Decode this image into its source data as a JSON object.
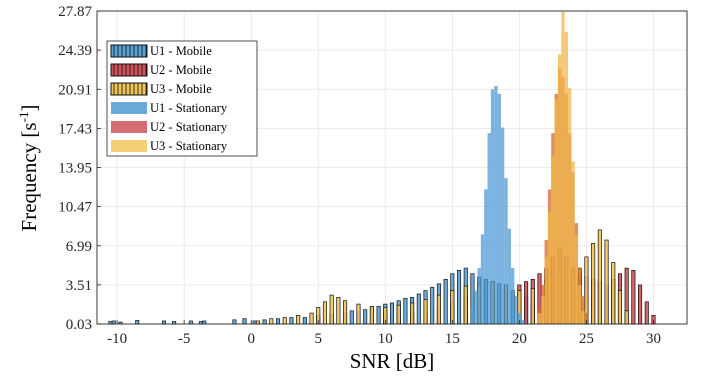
{
  "chart_data": {
    "type": "histogram",
    "xlabel": "SNR [dB]",
    "ylabel": "Frequency [s",
    "ylabel_sup": "-1",
    "ylabel_end": "]",
    "xlim": [
      -11.5,
      32.5
    ],
    "ylim": [
      0.03,
      27.87
    ],
    "xticks": [
      -10,
      -5,
      0,
      5,
      10,
      15,
      20,
      25,
      30
    ],
    "xtick_labels": [
      "-10",
      "-5",
      "0",
      "5",
      "10",
      "15",
      "20",
      "25",
      "30"
    ],
    "yticks": [
      0.03,
      3.51,
      6.99,
      10.47,
      13.95,
      17.43,
      20.91,
      24.39,
      27.87
    ],
    "ytick_labels": [
      "0.03",
      "3.51",
      "6.99",
      "10.47",
      "13.95",
      "17.43",
      "20.91",
      "24.39",
      "27.87"
    ],
    "grid": true,
    "legend_position": "top-left",
    "bin_width": 0.25,
    "series": [
      {
        "name": "U1 - Mobile",
        "style": "outlined",
        "color": "#0072BD",
        "x": [
          -10.5,
          -10.25,
          -9.75,
          -8.5,
          -6.5,
          -5.75,
          -4.5,
          -3.75,
          -3.5,
          -1.25,
          -0.5,
          0.25,
          1.0,
          2.0,
          3.0,
          4.0,
          5.0,
          6.0,
          7.0,
          7.5,
          8.0,
          8.5,
          9.0,
          9.5,
          10.0,
          10.5,
          11.0,
          11.5,
          12.0,
          12.5,
          13.0,
          13.5,
          14.0,
          14.5,
          15.0,
          15.5,
          16.0,
          16.5,
          17.0,
          17.5,
          18.0,
          18.5,
          19.0,
          19.5,
          20.0,
          20.5,
          21.0
        ],
        "values": [
          0.25,
          0.3,
          0.2,
          0.35,
          0.3,
          0.25,
          0.3,
          0.25,
          0.3,
          0.4,
          0.5,
          0.3,
          0.4,
          0.5,
          0.6,
          0.6,
          0.8,
          0.9,
          1.0,
          1.2,
          1.1,
          1.3,
          1.5,
          1.6,
          1.8,
          1.9,
          2.1,
          2.3,
          2.4,
          2.7,
          3.0,
          3.3,
          3.6,
          4.0,
          4.5,
          4.8,
          5.0,
          4.5,
          4.2,
          4.0,
          3.8,
          3.6,
          3.3,
          3.0,
          2.8,
          2.4,
          1.8
        ]
      },
      {
        "name": "U2 - Mobile",
        "style": "outlined",
        "color": "#D95319",
        "x": [
          10.0,
          11.0,
          12.0,
          13.0,
          14.0,
          15.0,
          16.0,
          17.0,
          18.0,
          19.0,
          20.0,
          20.5,
          21.0,
          21.5,
          22.0,
          22.5,
          23.0,
          23.5,
          24.0,
          24.5,
          25.0,
          25.5,
          26.0,
          26.5,
          27.0,
          27.5,
          28.0,
          28.5,
          29.0,
          29.5,
          30.0
        ],
        "values": [
          0.5,
          0.8,
          1.0,
          1.2,
          1.5,
          1.9,
          2.3,
          2.7,
          3.0,
          3.3,
          3.5,
          3.8,
          4.0,
          4.5,
          5.0,
          6.0,
          6.8,
          6.0,
          5.0,
          4.5,
          4.2,
          4.0,
          3.8,
          3.5,
          4.0,
          4.5,
          5.0,
          4.8,
          3.5,
          2.0,
          0.8
        ]
      },
      {
        "name": "U3 - Mobile",
        "style": "outlined",
        "color": "#EDB120",
        "x": [
          0.5,
          1.5,
          2.5,
          3.5,
          4.5,
          5.0,
          5.5,
          6.0,
          6.5,
          7.0,
          8.0,
          9.0,
          10.0,
          11.0,
          12.0,
          13.0,
          14.0,
          15.0,
          16.0,
          17.0,
          18.0,
          19.0,
          20.0,
          21.0,
          22.0,
          23.0,
          24.0,
          24.5,
          25.0,
          25.5,
          26.0,
          26.5,
          27.0,
          27.5,
          28.0
        ],
        "values": [
          0.3,
          0.5,
          0.6,
          0.8,
          1.0,
          1.5,
          2.0,
          2.6,
          2.4,
          2.1,
          1.8,
          1.6,
          1.5,
          1.7,
          1.9,
          2.2,
          2.6,
          3.0,
          3.4,
          3.6,
          3.8,
          3.5,
          3.0,
          3.2,
          4.0,
          4.8,
          4.5,
          5.0,
          6.0,
          7.2,
          8.4,
          7.5,
          5.5,
          3.0,
          1.2
        ]
      },
      {
        "name": "U1 - Stationary",
        "style": "filled",
        "color": "#0072BD",
        "x": [
          16.5,
          16.75,
          17.0,
          17.25,
          17.5,
          17.75,
          18.0,
          18.25,
          18.5,
          18.75,
          19.0,
          19.25,
          19.5,
          19.75,
          20.0,
          20.25
        ],
        "values": [
          1.5,
          3.0,
          5.0,
          8.0,
          12.0,
          17.0,
          20.9,
          21.2,
          20.5,
          17.5,
          13.0,
          8.5,
          5.0,
          2.5,
          1.0,
          0.4
        ]
      },
      {
        "name": "U2 - Stationary",
        "style": "filled",
        "color": "#D95319",
        "x": [
          21.5,
          21.75,
          22.0,
          22.25,
          22.5,
          22.75,
          23.0,
          23.25,
          23.5,
          23.75,
          24.0,
          24.25,
          24.5,
          24.75,
          25.0
        ],
        "values": [
          1.5,
          3.5,
          7.5,
          12.0,
          17.0,
          20.5,
          22.8,
          22.0,
          20.5,
          17.0,
          13.5,
          9.0,
          5.0,
          2.5,
          1.0
        ]
      },
      {
        "name": "U3 - Stationary",
        "style": "filled",
        "color": "#EDB120",
        "x": [
          21.5,
          21.75,
          22.0,
          22.25,
          22.5,
          22.75,
          23.0,
          23.25,
          23.5,
          23.75,
          24.0,
          24.25,
          24.5,
          24.75
        ],
        "values": [
          1.0,
          2.5,
          6.0,
          10.0,
          15.0,
          20.0,
          24.0,
          27.8,
          26.0,
          21.0,
          14.5,
          8.0,
          3.5,
          1.2
        ]
      }
    ]
  }
}
